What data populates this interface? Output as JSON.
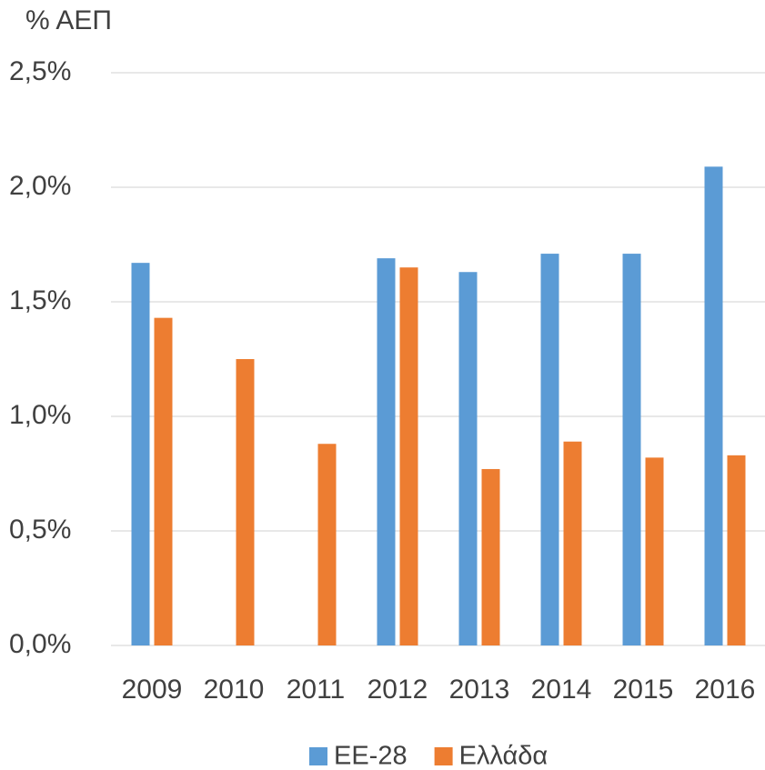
{
  "chart_data": {
    "type": "bar",
    "y_label": "% ΑΕΠ",
    "categories": [
      "2009",
      "2010",
      "2011",
      "2012",
      "2013",
      "2014",
      "2015",
      "2016"
    ],
    "series": [
      {
        "name": "ΕΕ-28",
        "color": "#5b9bd5",
        "values": [
          1.67,
          null,
          null,
          1.69,
          1.63,
          1.71,
          1.71,
          2.09
        ]
      },
      {
        "name": "Ελλάδα",
        "color": "#ed7d31",
        "values": [
          1.43,
          1.25,
          0.88,
          1.65,
          0.77,
          0.89,
          0.82,
          0.83
        ]
      }
    ],
    "ylim": [
      0,
      2.5
    ],
    "yticks": [
      {
        "value": 0,
        "label": "0,0%"
      },
      {
        "value": 0.5,
        "label": "0,5%"
      },
      {
        "value": 1,
        "label": "1,0%"
      },
      {
        "value": 1.5,
        "label": "1,5%"
      },
      {
        "value": 2,
        "label": "2,0%"
      },
      {
        "value": 2.5,
        "label": "2,5%"
      }
    ],
    "grid": true,
    "legend": "bottom"
  }
}
